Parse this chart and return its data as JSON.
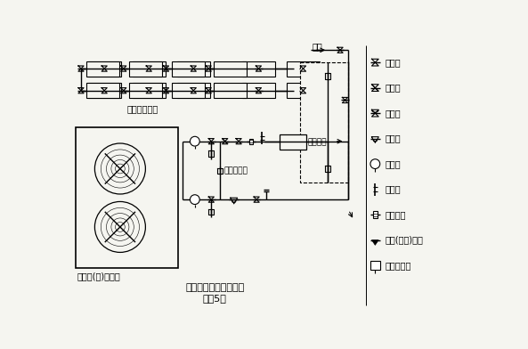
{
  "title": "闭式水系统安装参考图",
  "subtitle": "（图5）",
  "main_label": "风冷冷(热)水主机",
  "ac_label": "空调末端机组",
  "heater_label": "电加热器",
  "bypass_label": "维护旁通阀",
  "supply_label": "补水",
  "legend_items": [
    {
      "text": "截止阀"
    },
    {
      "text": "止回阀"
    },
    {
      "text": "调节阀"
    },
    {
      "text": "过滤器"
    },
    {
      "text": "压力表"
    },
    {
      "text": "温度计"
    },
    {
      "text": "流量开关"
    },
    {
      "text": "排水(排气)接头"
    },
    {
      "text": "密闭膨胀罐"
    }
  ],
  "line_color": "#000000",
  "bg_color": "#f5f5f0"
}
